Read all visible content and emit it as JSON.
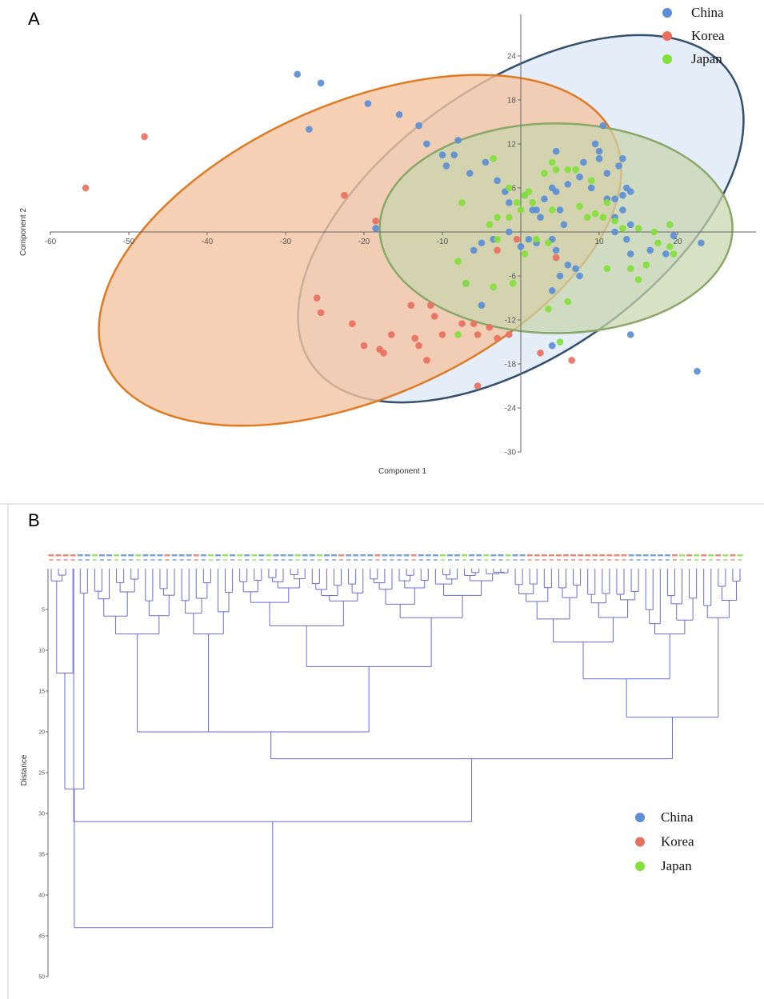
{
  "figure": {
    "panels": [
      "A",
      "B"
    ],
    "colors": {
      "China": "#5b8ed6",
      "Korea": "#e87a6a",
      "Japan": "#7fdc3a",
      "china_ellipse": "#34506e",
      "korea_ellipse": "#e07a22",
      "japan_ellipse": "#8aa86a",
      "dendro_line": "#6a6ad8"
    }
  },
  "chart_data": [
    {
      "type": "scatter",
      "panel": "A",
      "title": "",
      "xlabel": "Component 1",
      "ylabel": "Component 2",
      "xlim": [
        -60,
        30
      ],
      "ylim": [
        -30,
        30
      ],
      "xticks": [
        -60,
        -50,
        -40,
        -30,
        -20,
        -10,
        10,
        20
      ],
      "yticks": [
        24,
        18,
        12,
        6,
        -6,
        -12,
        -18,
        -24,
        -30
      ],
      "grid": false,
      "legend": {
        "position": "top-right",
        "entries": [
          "China",
          "Korea",
          "Japan"
        ]
      },
      "ellipses": [
        {
          "group": "China",
          "cx": 0,
          "cy": 1.8,
          "rx": 32.5,
          "ry": 18.5,
          "angle_deg": -35
        },
        {
          "group": "Korea",
          "cx": -20.5,
          "cy": -2.5,
          "rx": 35.5,
          "ry": 20,
          "angle_deg": -24
        },
        {
          "group": "Japan",
          "cx": 4.5,
          "cy": 0.5,
          "rx": 22.5,
          "ry": 14.3,
          "angle_deg": 0
        }
      ],
      "series": [
        {
          "name": "China",
          "points": [
            [
              -28.5,
              21.5
            ],
            [
              -25.5,
              20.3
            ],
            [
              -27,
              14
            ],
            [
              -19.5,
              17.5
            ],
            [
              -15.5,
              16
            ],
            [
              -13,
              14.5
            ],
            [
              -12,
              12
            ],
            [
              -10,
              10.5
            ],
            [
              -8,
              12.5
            ],
            [
              -8.5,
              10.5
            ],
            [
              -9.5,
              9
            ],
            [
              -6.5,
              8
            ],
            [
              -4.5,
              9.5
            ],
            [
              -3,
              7
            ],
            [
              -2,
              5.5
            ],
            [
              -1.5,
              4
            ],
            [
              0.5,
              5
            ],
            [
              1.5,
              3
            ],
            [
              2.5,
              2
            ],
            [
              3,
              4.5
            ],
            [
              4,
              6
            ],
            [
              4.5,
              5.5
            ],
            [
              5,
              3
            ],
            [
              5.5,
              1
            ],
            [
              6,
              6.5
            ],
            [
              7.5,
              7.5
            ],
            [
              9,
              6
            ],
            [
              10,
              11
            ],
            [
              9.5,
              12
            ],
            [
              11,
              4.5
            ],
            [
              12,
              4.5
            ],
            [
              12.5,
              9
            ],
            [
              13,
              5
            ],
            [
              14,
              5.5
            ],
            [
              13.5,
              6
            ],
            [
              12,
              2
            ],
            [
              13,
              3
            ],
            [
              11,
              8
            ],
            [
              10,
              10
            ],
            [
              8,
              9.5
            ],
            [
              4.5,
              11
            ],
            [
              10.5,
              14.5
            ],
            [
              13,
              10
            ],
            [
              14,
              1
            ],
            [
              13.5,
              -1
            ],
            [
              12,
              0
            ],
            [
              14,
              -3
            ],
            [
              16.5,
              -2.5
            ],
            [
              18.5,
              -3
            ],
            [
              19.5,
              -0.5
            ],
            [
              23,
              -1.5
            ],
            [
              14,
              -14
            ],
            [
              22.5,
              -19
            ],
            [
              4,
              -15.5
            ],
            [
              4,
              -8
            ],
            [
              5,
              -6
            ],
            [
              6,
              -4.5
            ],
            [
              7,
              -5
            ],
            [
              7.5,
              -6
            ],
            [
              1,
              -1
            ],
            [
              0,
              -2
            ],
            [
              -1.5,
              0
            ],
            [
              -3.5,
              -1
            ],
            [
              -5,
              -1.5
            ],
            [
              -6,
              -2.5
            ],
            [
              -7,
              -7
            ],
            [
              -5,
              -10
            ],
            [
              4,
              -1
            ],
            [
              4.5,
              -2.5
            ],
            [
              2,
              -1.5
            ],
            [
              -18.5,
              0.5
            ],
            [
              2,
              3
            ]
          ]
        },
        {
          "name": "Korea",
          "points": [
            [
              -55.5,
              6
            ],
            [
              -48,
              13
            ],
            [
              -22.5,
              5
            ],
            [
              -18.5,
              1.5
            ],
            [
              -26,
              -9
            ],
            [
              -25.5,
              -11
            ],
            [
              -21.5,
              -12.5
            ],
            [
              -20,
              -15.5
            ],
            [
              -18,
              -16
            ],
            [
              -17.5,
              -16.5
            ],
            [
              -16.5,
              -14
            ],
            [
              -14,
              -10
            ],
            [
              -13.5,
              -14.5
            ],
            [
              -13,
              -15.5
            ],
            [
              -12,
              -17.5
            ],
            [
              -11.5,
              -10
            ],
            [
              -11,
              -11.5
            ],
            [
              -10,
              -14
            ],
            [
              -7.5,
              -12.5
            ],
            [
              -6,
              -12.5
            ],
            [
              -5.5,
              -14
            ],
            [
              -3,
              -14.5
            ],
            [
              -1.5,
              -14
            ],
            [
              -4,
              -13
            ],
            [
              -5.5,
              -21
            ],
            [
              2.5,
              -16.5
            ],
            [
              4.5,
              -3.5
            ],
            [
              6.5,
              -17.5
            ],
            [
              -3,
              -2.5
            ],
            [
              -0.5,
              -1
            ]
          ]
        },
        {
          "name": "Japan",
          "points": [
            [
              -3.5,
              10
            ],
            [
              -1.5,
              6
            ],
            [
              0.5,
              5
            ],
            [
              1,
              5.5
            ],
            [
              -0.5,
              4
            ],
            [
              0,
              3
            ],
            [
              1.5,
              4
            ],
            [
              -1.5,
              2
            ],
            [
              -3,
              2
            ],
            [
              -4,
              1
            ],
            [
              -7.5,
              4
            ],
            [
              -3,
              -1
            ],
            [
              -8,
              -4
            ],
            [
              -7,
              -7
            ],
            [
              -3.5,
              -7.5
            ],
            [
              -1,
              -7
            ],
            [
              0.5,
              -3
            ],
            [
              2,
              -1
            ],
            [
              3.5,
              -1.5
            ],
            [
              4,
              3
            ],
            [
              3,
              8
            ],
            [
              4,
              9.5
            ],
            [
              4.5,
              8.5
            ],
            [
              6,
              8.5
            ],
            [
              7,
              8.5
            ],
            [
              9,
              7
            ],
            [
              7.5,
              3.5
            ],
            [
              8.5,
              2
            ],
            [
              9.5,
              2.5
            ],
            [
              10.5,
              2
            ],
            [
              11,
              4
            ],
            [
              12,
              1.5
            ],
            [
              13,
              0.5
            ],
            [
              15,
              0.5
            ],
            [
              17,
              0
            ],
            [
              19,
              1
            ],
            [
              17.5,
              -1.5
            ],
            [
              19,
              -2
            ],
            [
              19.5,
              -3
            ],
            [
              16,
              -4.5
            ],
            [
              14,
              -5
            ],
            [
              11,
              -5
            ],
            [
              15,
              -6.5
            ],
            [
              6,
              -9.5
            ],
            [
              3.5,
              -10.5
            ],
            [
              -8,
              -14
            ],
            [
              5,
              -15
            ]
          ]
        }
      ]
    },
    {
      "type": "dendrogram",
      "panel": "B",
      "title": "",
      "ylabel": "Distance",
      "ylim": [
        0,
        50
      ],
      "yticks": [
        5,
        10,
        15,
        20,
        25,
        30,
        35,
        40,
        45,
        50
      ],
      "leaf_count": 96,
      "legend": {
        "position": "bottom-right",
        "entries": [
          "China",
          "Korea",
          "Japan"
        ]
      },
      "merges": [
        44,
        31,
        27,
        23.3,
        20,
        18.2,
        16,
        13.5,
        12.8,
        12,
        11,
        9.5,
        8
      ]
    }
  ]
}
